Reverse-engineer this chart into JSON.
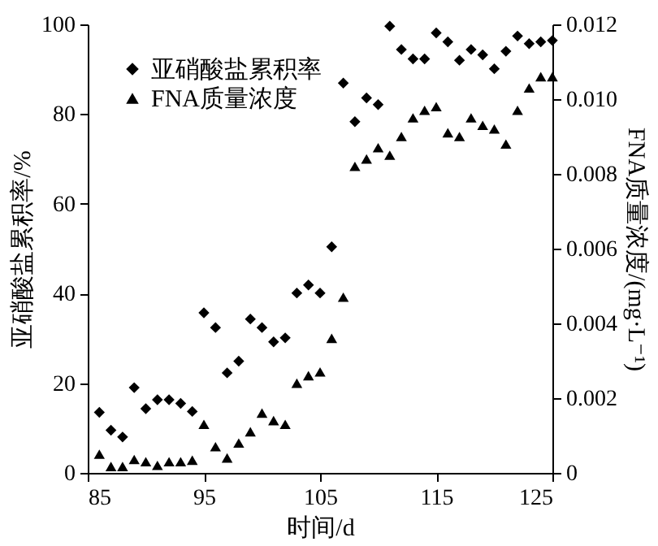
{
  "chart_data": {
    "type": "scatter",
    "xlabel": "时间/d",
    "ylabel": "亚硝酸盐累积率/%",
    "y2label": "FNA质量浓度/(mg·L⁻¹)",
    "x": [
      86,
      87,
      88,
      89,
      90,
      91,
      92,
      93,
      94,
      95,
      96,
      97,
      98,
      99,
      100,
      101,
      102,
      103,
      104,
      105,
      106,
      107,
      108,
      109,
      110,
      111,
      112,
      113,
      114,
      115,
      116,
      117,
      118,
      119,
      120,
      121,
      122,
      123,
      124,
      125
    ],
    "series": [
      {
        "name": "亚硝酸盐累积率",
        "color": "#000000",
        "marker": "diamond",
        "values": [
          13.5,
          9.5,
          8,
          19,
          14.3,
          16.3,
          16.3,
          15.5,
          13.7,
          35.7,
          32.4,
          22.3,
          24.9,
          34.3,
          32.4,
          29.2,
          30.1,
          40.1,
          41.9,
          40.1,
          50.4,
          86.9,
          78.3,
          83.6,
          82.1,
          99.6,
          94.4,
          92.3,
          92.3,
          98.1,
          96.1,
          92,
          94.4,
          93.2,
          90.1,
          94,
          97.4,
          95.7,
          96.1,
          96.4
        ]
      },
      {
        "name": "FNA质量浓度",
        "color": "#000000",
        "marker": "triangle",
        "axis": "y2",
        "values": [
          0.0005,
          0.00017,
          0.00017,
          0.00036,
          0.0003,
          0.0002,
          0.0003,
          0.0003,
          0.00034,
          0.0013,
          0.0007,
          0.0004,
          0.0008,
          0.0011,
          0.0016,
          0.0014,
          0.0013,
          0.0024,
          0.0026,
          0.0027,
          0.0036,
          0.0047,
          0.0082,
          0.0084,
          0.0087,
          0.0085,
          0.009,
          0.0095,
          0.0097,
          0.0098,
          0.0091,
          0.009,
          0.0095,
          0.0093,
          0.0092,
          0.0088,
          0.0097,
          0.0103,
          0.0106,
          0.0106
        ]
      }
    ],
    "xlim": [
      85,
      125
    ],
    "xticks": [
      85,
      95,
      105,
      115,
      125
    ],
    "ylim": [
      0,
      100
    ],
    "yticks": [
      0,
      20,
      40,
      60,
      80,
      100
    ],
    "y2lim": [
      0,
      0.012
    ],
    "y2ticks": [
      0,
      0.002,
      0.004,
      0.006,
      0.008,
      {
        "value": 0.01,
        "label": "0.010"
      },
      0.012
    ],
    "grid": false,
    "legend": "top left"
  }
}
